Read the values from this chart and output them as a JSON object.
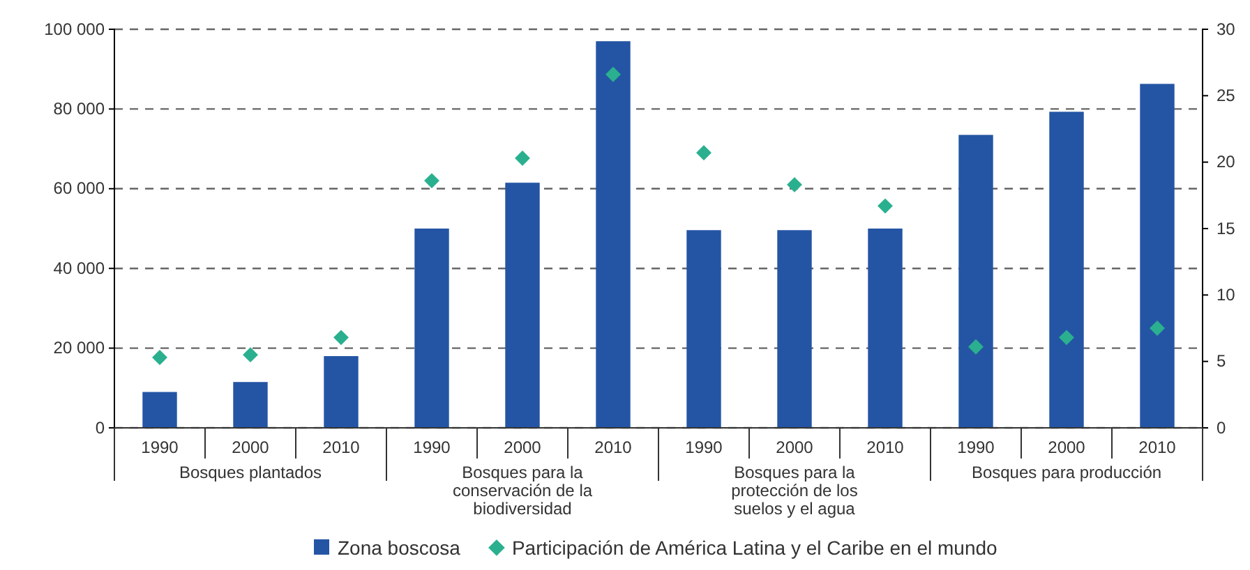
{
  "chart_data": {
    "type": "bar",
    "categories": [
      "1990",
      "2000",
      "2010",
      "1990",
      "2000",
      "2010",
      "1990",
      "2000",
      "2010",
      "1990",
      "2000",
      "2010"
    ],
    "annotations": [
      "Bosques plantados",
      "Bosques para la conservación de la biodiversidad",
      "Bosques para la protección de los suelos y el agua",
      "Bosques para producción"
    ],
    "series": [
      {
        "name": "Zona boscosa",
        "color": "#2455a4",
        "values": [
          9000,
          11500,
          18000,
          50000,
          61500,
          97000,
          49600,
          49600,
          50000,
          73500,
          79300,
          86300
        ]
      },
      {
        "name": "Participación de América Latina y el Caribe en el mundo",
        "type": "scatter",
        "axis": "y2",
        "color": "#2bb08f",
        "values": [
          5.3,
          5.5,
          6.8,
          18.6,
          20.3,
          26.6,
          20.7,
          18.3,
          16.7,
          6.1,
          6.8,
          7.5
        ]
      }
    ],
    "ylim": [
      0,
      100000
    ],
    "yticks": [
      {
        "value": 0,
        "label": "0"
      },
      {
        "value": 20000,
        "label": "20 000"
      },
      {
        "value": 40000,
        "label": "40 000"
      },
      {
        "value": 60000,
        "label": "60 000"
      },
      {
        "value": 80000,
        "label": "80 000"
      },
      {
        "value": 100000,
        "label": "100 000"
      }
    ],
    "y2lim": [
      0,
      30
    ],
    "y2ticks": [
      0,
      5,
      10,
      15,
      20,
      25,
      30
    ],
    "grid": "y",
    "legend": "bottom",
    "marker": "diamond"
  }
}
